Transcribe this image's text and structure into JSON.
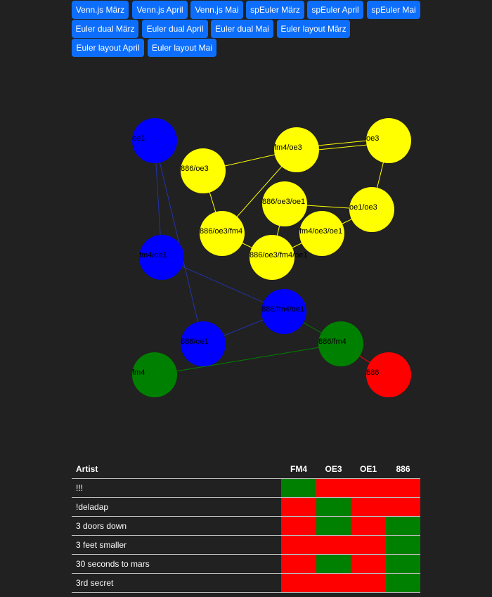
{
  "buttons": [
    "Venn.js März",
    "Venn.js April",
    "Venn.js Mai",
    "spEuler März",
    "spEuler April",
    "spEuler Mai",
    "Euler dual März",
    "Euler dual April",
    "Euler dual Mai",
    "Euler layout März",
    "Euler layout April",
    "Euler layout Mai"
  ],
  "graph": {
    "nodes": [
      {
        "label": "oe1",
        "color": "#0000ff"
      },
      {
        "label": "fm4/oe3",
        "color": "#ffff00"
      },
      {
        "label": "oe3",
        "color": "#ffff00"
      },
      {
        "label": "886/oe3",
        "color": "#ffff00"
      },
      {
        "label": "886/oe3/oe1",
        "color": "#ffff00"
      },
      {
        "label": "oe1/oe3",
        "color": "#ffff00"
      },
      {
        "label": "886/oe3/fm4",
        "color": "#ffff00"
      },
      {
        "label": "fm4/oe3/oe1",
        "color": "#ffff00"
      },
      {
        "label": "fm4/oe1",
        "color": "#0000ff"
      },
      {
        "label": "886/oe3/fm4/oe1",
        "color": "#ffff00"
      },
      {
        "label": "886/fm4/oe1",
        "color": "#0000ff"
      },
      {
        "label": "886/fm4",
        "color": "#008000"
      },
      {
        "label": "886/oe1",
        "color": "#0000ff"
      },
      {
        "label": "fm4",
        "color": "#008000"
      },
      {
        "label": "886",
        "color": "#ff0000"
      }
    ]
  },
  "table": {
    "header": [
      "Artist",
      "FM4",
      "OE3",
      "OE1",
      "886"
    ],
    "rows": [
      {
        "artist": "!!!",
        "cells": [
          "#008000",
          "#ff0000",
          "#ff0000",
          "#ff0000"
        ]
      },
      {
        "artist": "!deladap",
        "cells": [
          "#ff0000",
          "#008000",
          "#ff0000",
          "#ff0000"
        ]
      },
      {
        "artist": "3 doors down",
        "cells": [
          "#ff0000",
          "#008000",
          "#ff0000",
          "#008000"
        ]
      },
      {
        "artist": "3 feet smaller",
        "cells": [
          "#ff0000",
          "#ff0000",
          "#ff0000",
          "#008000"
        ]
      },
      {
        "artist": "30 seconds to mars",
        "cells": [
          "#ff0000",
          "#008000",
          "#ff0000",
          "#008000"
        ]
      },
      {
        "artist": "3rd secret",
        "cells": [
          "#ff0000",
          "#ff0000",
          "#ff0000",
          "#008000"
        ]
      }
    ]
  }
}
